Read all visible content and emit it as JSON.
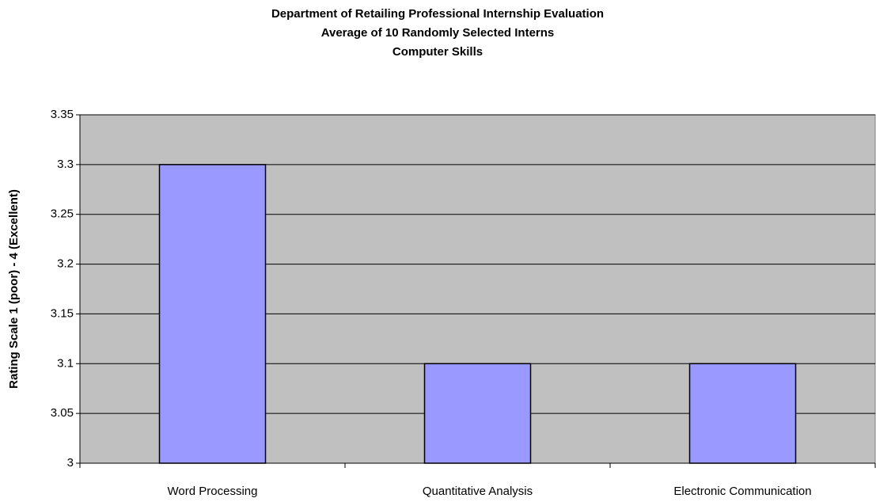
{
  "chart_data": {
    "type": "bar",
    "title": [
      "Department of Retailing Professional Internship Evaluation",
      "Average of 10 Randomly Selected Interns",
      "Computer Skills"
    ],
    "y_label": "Rating Scale 1 (poor) - 4 (Excellent)",
    "categories": [
      "Word Processing",
      "Quantitative Analysis",
      "Electronic Communication"
    ],
    "values": [
      3.3,
      3.1,
      3.1
    ],
    "color": "#9999ff",
    "ylim": [
      3,
      3.35
    ],
    "yticks": [
      3,
      3.05,
      3.1,
      3.15,
      3.2,
      3.25,
      3.3,
      3.35
    ],
    "grid": true
  }
}
